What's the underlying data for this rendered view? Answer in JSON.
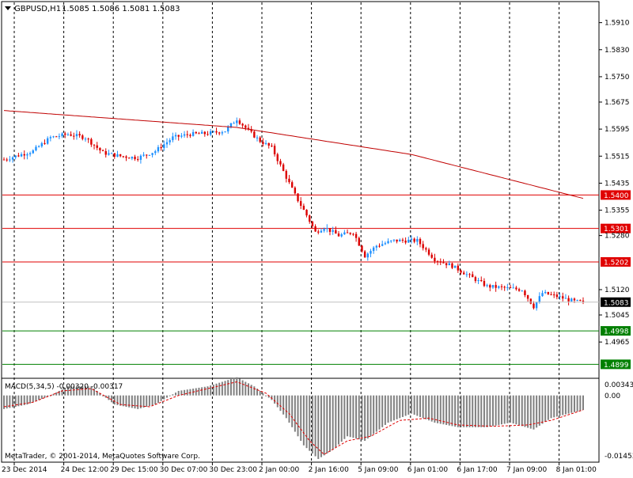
{
  "header": {
    "symbol_label": "GBPUSD,H1",
    "ohlc": "1.5085 1.5086 1.5081 1.5083"
  },
  "indicator": {
    "label": "MACD(5,34,5) -0.00320 -0.00317",
    "scale": [
      "0.00343",
      "0.00",
      "-0.01453"
    ]
  },
  "copyright": "MetaTrader, © 2001-2014, MetaQuotes Software Corp.",
  "colors": {
    "bull": "#1e90ff",
    "bear": "#dc0000",
    "ma": "#c00000",
    "resistance": "#e00000",
    "support": "#008000",
    "macd_hist": "#808080",
    "macd_signal": "#e00000",
    "current_price": "#000000"
  },
  "chart_data": {
    "type": "candlestick",
    "symbol": "GBPUSD",
    "timeframe": "H1",
    "ylim": [
      1.486,
      1.597
    ],
    "price_ticks": [
      "1.5910",
      "1.5830",
      "1.5750",
      "1.5675",
      "1.5595",
      "1.5515",
      "1.5435",
      "1.5355",
      "1.5280",
      "1.5120",
      "1.5045",
      "1.4965"
    ],
    "time_labels": [
      "23 Dec 2014",
      "24 Dec 12:00",
      "29 Dec 15:00",
      "30 Dec 07:00",
      "30 Dec 23:00",
      "2 Jan 00:00",
      "2 Jan 16:00",
      "5 Jan 09:00",
      "6 Jan 01:00",
      "6 Jan 17:00",
      "7 Jan 09:00",
      "8 Jan 01:00"
    ],
    "horizontal_lines": [
      {
        "label": "1.5400",
        "value": 1.54,
        "kind": "resistance"
      },
      {
        "label": "1.5301",
        "value": 1.5301,
        "kind": "resistance"
      },
      {
        "label": "1.5202",
        "value": 1.5202,
        "kind": "resistance"
      },
      {
        "label": "1.4998",
        "value": 1.4998,
        "kind": "support"
      },
      {
        "label": "1.4899",
        "value": 1.4899,
        "kind": "support"
      }
    ],
    "current_price": {
      "label": "1.5083",
      "value": 1.5083
    },
    "close_path": [
      [
        0,
        1.5505
      ],
      [
        4,
        1.5515
      ],
      [
        10,
        1.553
      ],
      [
        16,
        1.557
      ],
      [
        22,
        1.558
      ],
      [
        28,
        1.557
      ],
      [
        34,
        1.5525
      ],
      [
        40,
        1.5515
      ],
      [
        46,
        1.551
      ],
      [
        52,
        1.553
      ],
      [
        58,
        1.557
      ],
      [
        64,
        1.558
      ],
      [
        70,
        1.5582
      ],
      [
        76,
        1.559
      ],
      [
        80,
        1.5625
      ],
      [
        84,
        1.559
      ],
      [
        88,
        1.556
      ],
      [
        92,
        1.554
      ],
      [
        96,
        1.547
      ],
      [
        100,
        1.54
      ],
      [
        104,
        1.534
      ],
      [
        107,
        1.529
      ],
      [
        110,
        1.5305
      ],
      [
        115,
        1.528
      ],
      [
        120,
        1.529
      ],
      [
        124,
        1.522
      ],
      [
        128,
        1.525
      ],
      [
        134,
        1.5265
      ],
      [
        142,
        1.5265
      ],
      [
        148,
        1.521
      ],
      [
        154,
        1.519
      ],
      [
        160,
        1.516
      ],
      [
        166,
        1.513
      ],
      [
        172,
        1.5125
      ],
      [
        178,
        1.512
      ],
      [
        182,
        1.507
      ],
      [
        185,
        1.511
      ],
      [
        190,
        1.51
      ],
      [
        196,
        1.5085
      ],
      [
        199,
        1.5083
      ]
    ],
    "moving_average": [
      [
        0,
        1.565
      ],
      [
        80,
        1.56
      ],
      [
        140,
        1.552
      ],
      [
        199,
        1.539
      ]
    ],
    "macd_histogram_path": [
      [
        0,
        -0.003
      ],
      [
        8,
        -0.002
      ],
      [
        16,
        0.0
      ],
      [
        22,
        0.002
      ],
      [
        30,
        0.002
      ],
      [
        38,
        -0.002
      ],
      [
        46,
        -0.003
      ],
      [
        52,
        -0.002
      ],
      [
        60,
        0.001
      ],
      [
        70,
        0.002
      ],
      [
        80,
        0.004
      ],
      [
        86,
        0.002
      ],
      [
        92,
        -0.001
      ],
      [
        97,
        -0.005
      ],
      [
        103,
        -0.011
      ],
      [
        108,
        -0.014
      ],
      [
        113,
        -0.012
      ],
      [
        118,
        -0.009
      ],
      [
        124,
        -0.01
      ],
      [
        132,
        -0.006
      ],
      [
        140,
        -0.004
      ],
      [
        148,
        -0.006
      ],
      [
        156,
        -0.007
      ],
      [
        166,
        -0.007
      ],
      [
        174,
        -0.006
      ],
      [
        182,
        -0.0075
      ],
      [
        188,
        -0.005
      ],
      [
        194,
        -0.004
      ],
      [
        199,
        -0.0032
      ]
    ],
    "macd_signal_path": [
      [
        0,
        -0.0025
      ],
      [
        10,
        -0.0015
      ],
      [
        20,
        0.001
      ],
      [
        30,
        0.0015
      ],
      [
        40,
        -0.002
      ],
      [
        50,
        -0.0025
      ],
      [
        60,
        0.0
      ],
      [
        70,
        0.0015
      ],
      [
        80,
        0.003
      ],
      [
        90,
        0.0005
      ],
      [
        98,
        -0.004
      ],
      [
        105,
        -0.01
      ],
      [
        110,
        -0.013
      ],
      [
        118,
        -0.01
      ],
      [
        126,
        -0.009
      ],
      [
        136,
        -0.0055
      ],
      [
        146,
        -0.005
      ],
      [
        156,
        -0.0065
      ],
      [
        168,
        -0.0068
      ],
      [
        180,
        -0.0065
      ],
      [
        188,
        -0.0055
      ],
      [
        199,
        -0.0032
      ]
    ]
  }
}
